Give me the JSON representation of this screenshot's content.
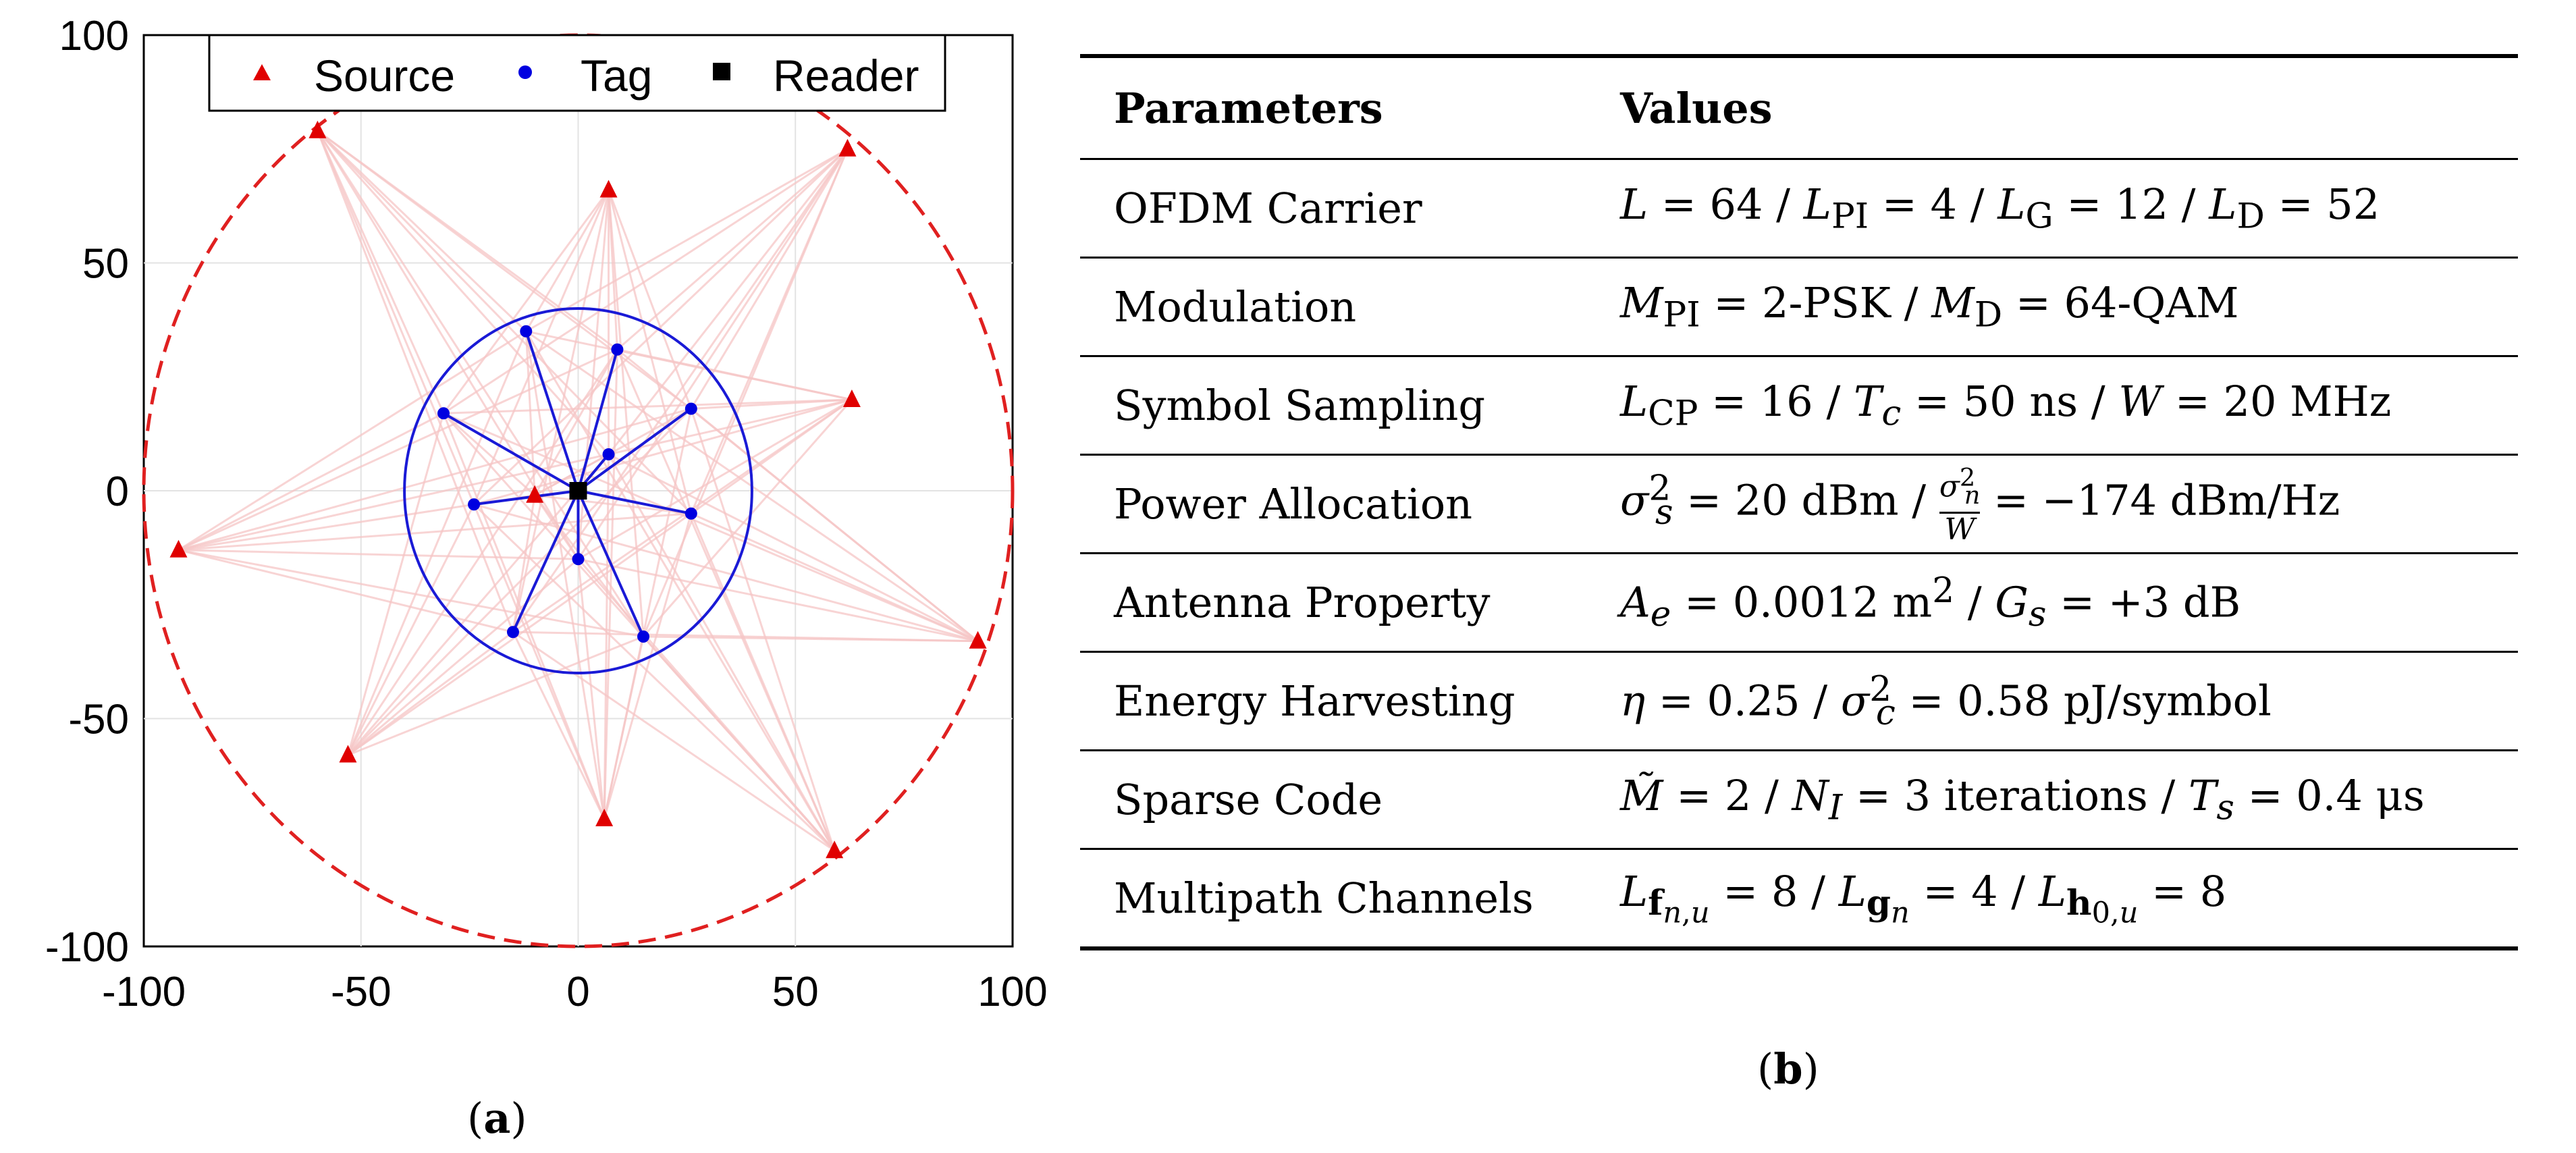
{
  "chart_data": [
    {
      "type": "scatter",
      "panel": "(a)",
      "xlim": [
        -100,
        100
      ],
      "ylim": [
        -100,
        100
      ],
      "x_ticks": [
        "-100",
        "-50",
        "0",
        "50",
        "100"
      ],
      "y_ticks": [
        "100",
        "50",
        "0",
        "-50",
        "-100"
      ],
      "x_tick_values": [
        -100,
        -50,
        0,
        50,
        100
      ],
      "y_tick_values": [
        100,
        50,
        0,
        -50,
        -100
      ],
      "grid": true,
      "legend_position": "top",
      "legend": [
        {
          "label": "Source",
          "marker": "triangle",
          "color": "#e00000"
        },
        {
          "label": "Tag",
          "marker": "circle",
          "color": "#0000e0"
        },
        {
          "label": "Reader",
          "marker": "square",
          "color": "#000000"
        }
      ],
      "circles": [
        {
          "name": "source-boundary",
          "radius": 100,
          "style": "dashed",
          "color": "#e02020"
        },
        {
          "name": "tag-boundary",
          "radius": 40,
          "style": "solid",
          "color": "#1a1ad6"
        }
      ],
      "reader": {
        "x": 0,
        "y": 0
      },
      "sources": [
        {
          "x": -60,
          "y": 79
        },
        {
          "x": 7,
          "y": 66
        },
        {
          "x": 62,
          "y": 75
        },
        {
          "x": 63,
          "y": 20
        },
        {
          "x": -92,
          "y": -13
        },
        {
          "x": -10,
          "y": -1
        },
        {
          "x": 92,
          "y": -33
        },
        {
          "x": -53,
          "y": -58
        },
        {
          "x": 6,
          "y": -72
        },
        {
          "x": 59,
          "y": -79
        }
      ],
      "tags": [
        {
          "x": -12,
          "y": 35
        },
        {
          "x": 9,
          "y": 31
        },
        {
          "x": -31,
          "y": 17
        },
        {
          "x": 26,
          "y": 18
        },
        {
          "x": 7,
          "y": 8
        },
        {
          "x": -24,
          "y": -3
        },
        {
          "x": 26,
          "y": -5
        },
        {
          "x": 0,
          "y": -15
        },
        {
          "x": -15,
          "y": -31
        },
        {
          "x": 15,
          "y": -32
        }
      ],
      "colors": {
        "source": "#e00000",
        "tag": "#0000e0",
        "reader": "#000000",
        "link": "#f5c6c6",
        "tag_link": "#1a1ad6",
        "grid": "#e3e3e3"
      }
    },
    {
      "type": "table",
      "panel": "(b)",
      "headers": [
        "Parameters",
        "Values"
      ],
      "rows": [
        [
          "OFDM Carrier",
          "L = 64 / L_PI = 4 / L_G = 12 / L_D = 52"
        ],
        [
          "Modulation",
          "M_PI = 2-PSK / M_D = 64-QAM"
        ],
        [
          "Symbol Sampling",
          "L_CP = 16 / T_c = 50 ns / W = 20 MHz"
        ],
        [
          "Power Allocation",
          "σ_s² = 20 dBm / σ_n²/W = −174 dBm/Hz"
        ],
        [
          "Antenna Property",
          "A_e = 0.0012 m² / G_s = +3 dB"
        ],
        [
          "Energy Harvesting",
          "η = 0.25 / σ_c² = 0.58 pJ/symbol"
        ],
        [
          "Sparse Code",
          "M̃ = 2 / N_I = 3 iterations / T_s = 0.4 μs"
        ],
        [
          "Multipath Channels",
          "L_f(n,u) = 8 / L_g(n) = 4 / L_h(0,u) = 8"
        ]
      ]
    }
  ],
  "captions": {
    "a_label": "a",
    "b_label": "b"
  },
  "table": {
    "header_param": "Parameters",
    "header_value": "Values",
    "rows": [
      {
        "param": "OFDM Carrier"
      },
      {
        "param": "Modulation"
      },
      {
        "param": "Symbol Sampling"
      },
      {
        "param": "Power Allocation"
      },
      {
        "param": "Antenna Property"
      },
      {
        "param": "Energy Harvesting"
      },
      {
        "param": "Sparse Code"
      },
      {
        "param": "Multipath Channels"
      }
    ]
  },
  "values_text": {
    "ofdm": {
      "L": "L",
      "v1": "64",
      "LPI_sub": "PI",
      "v2": "4",
      "LG_sub": "G",
      "v3": "12",
      "LD_sub": "D",
      "v4": "52"
    },
    "mod": {
      "MPI_sub": "PI",
      "v1": "2-PSK",
      "MD_sub": "D",
      "v2": "64-QAM"
    },
    "samp": {
      "LCP_sub": "CP",
      "v1": "16",
      "Tc_sub": "c",
      "v2": "50 ns",
      "v3": "20 MHz"
    },
    "power": {
      "v1": "20 dBm",
      "v2": "−174 dBm/Hz"
    },
    "ant": {
      "v1": "0.0012 m",
      "v2": "+3 dB"
    },
    "energy": {
      "v1": "0.25",
      "v2": "0.58 pJ/symbol"
    },
    "sparse": {
      "v1": "2",
      "v2": "3 iterations",
      "v3": "0.4 μs"
    },
    "multi": {
      "v1": "8",
      "v2": "4",
      "v3": "8"
    }
  }
}
